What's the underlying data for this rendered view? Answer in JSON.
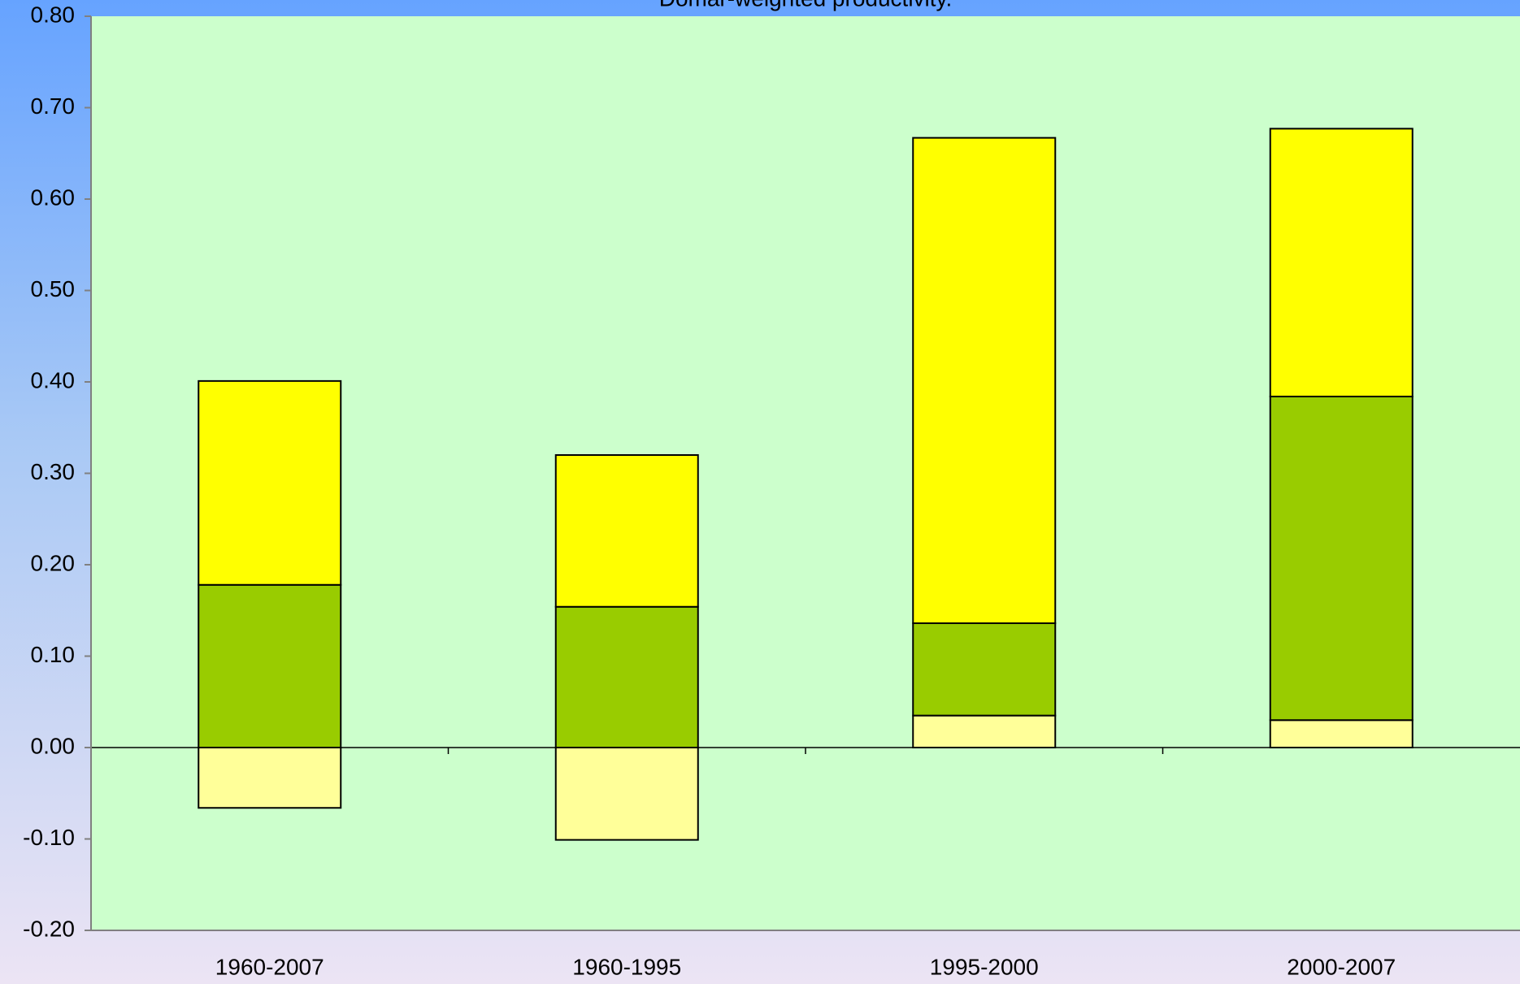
{
  "chart_data": {
    "type": "stacked-bar",
    "title": "Domar-weighted productivity.",
    "categories": [
      "1960-2007",
      "1960-1995",
      "1995-2000",
      "2000-2007"
    ],
    "series": [
      {
        "color": "#ffff99",
        "values": [
          -0.066,
          -0.101,
          0.035,
          0.03
        ]
      },
      {
        "color": "#99cc00",
        "values": [
          0.178,
          0.154,
          0.101,
          0.354
        ]
      },
      {
        "color": "#ffff00",
        "values": [
          0.223,
          0.166,
          0.531,
          0.293
        ]
      }
    ],
    "ylim": [
      -0.2,
      0.8
    ],
    "yticks": [
      {
        "value": -0.2,
        "label": "-0.20"
      },
      {
        "value": -0.1,
        "label": "-0.10"
      },
      {
        "value": 0,
        "label": "0.00"
      },
      {
        "value": 0.1,
        "label": "0.10"
      },
      {
        "value": 0.2,
        "label": "0.20"
      },
      {
        "value": 0.3,
        "label": "0.30"
      },
      {
        "value": 0.4,
        "label": "0.40"
      },
      {
        "value": 0.5,
        "label": "0.50"
      },
      {
        "value": 0.6,
        "label": "0.60"
      },
      {
        "value": 0.7,
        "label": "0.70"
      },
      {
        "value": 0.8,
        "label": "0.80"
      }
    ]
  }
}
